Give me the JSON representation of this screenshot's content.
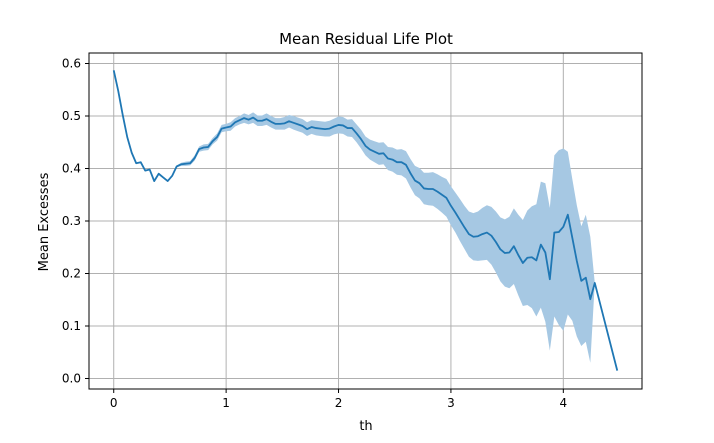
{
  "chart_data": {
    "type": "line",
    "title": "Mean Residual Life Plot",
    "xlabel": "th",
    "ylabel": "Mean Excesses",
    "xlim": [
      -0.22,
      4.7
    ],
    "ylim": [
      -0.02,
      0.62
    ],
    "grid": true,
    "x_ticks": [
      0,
      1,
      2,
      3,
      4
    ],
    "y_ticks": [
      0.0,
      0.1,
      0.2,
      0.3,
      0.4,
      0.5,
      0.6
    ],
    "x_tick_labels": [
      "0",
      "1",
      "2",
      "3",
      "4"
    ],
    "y_tick_labels": [
      "0.0",
      "0.1",
      "0.2",
      "0.3",
      "0.4",
      "0.5",
      "0.6"
    ],
    "colors": {
      "line": "#1f77b4",
      "band": "#a6c8e3",
      "grid": "#b0b0b0"
    },
    "series": [
      {
        "x": [
          0.0,
          0.04,
          0.08,
          0.12,
          0.16,
          0.2,
          0.24,
          0.28,
          0.32,
          0.36,
          0.4,
          0.44,
          0.48,
          0.52,
          0.56,
          0.6,
          0.64,
          0.68,
          0.72,
          0.76,
          0.8,
          0.84,
          0.88,
          0.92,
          0.96,
          1.0,
          1.04,
          1.08,
          1.12,
          1.16,
          1.2,
          1.24,
          1.28,
          1.32,
          1.36,
          1.4,
          1.44,
          1.48,
          1.52,
          1.56,
          1.6,
          1.64,
          1.68,
          1.72,
          1.76,
          1.8,
          1.84,
          1.88,
          1.92,
          1.96,
          2.0,
          2.04,
          2.08,
          2.12,
          2.16,
          2.2,
          2.24,
          2.28,
          2.32,
          2.36,
          2.4,
          2.44,
          2.48,
          2.52,
          2.56,
          2.6,
          2.64,
          2.68,
          2.72,
          2.76,
          2.8,
          2.84,
          2.88,
          2.92,
          2.96,
          3.0,
          3.04,
          3.08,
          3.12,
          3.16,
          3.2,
          3.24,
          3.28,
          3.32,
          3.36,
          3.4,
          3.44,
          3.48,
          3.52,
          3.56,
          3.6,
          3.64,
          3.68,
          3.72,
          3.76,
          3.8,
          3.84,
          3.88,
          3.92,
          3.96,
          4.0,
          4.04,
          4.08,
          4.12,
          4.16,
          4.2,
          4.24,
          4.28,
          4.48
        ],
        "y": [
          0.587,
          0.548,
          0.502,
          0.46,
          0.43,
          0.41,
          0.412,
          0.396,
          0.398,
          0.376,
          0.39,
          0.383,
          0.376,
          0.386,
          0.404,
          0.408,
          0.409,
          0.41,
          0.42,
          0.437,
          0.44,
          0.441,
          0.452,
          0.46,
          0.476,
          0.478,
          0.48,
          0.488,
          0.492,
          0.496,
          0.493,
          0.497,
          0.491,
          0.491,
          0.494,
          0.489,
          0.485,
          0.485,
          0.486,
          0.49,
          0.487,
          0.484,
          0.481,
          0.475,
          0.479,
          0.477,
          0.476,
          0.475,
          0.476,
          0.48,
          0.483,
          0.482,
          0.477,
          0.477,
          0.467,
          0.456,
          0.443,
          0.436,
          0.432,
          0.428,
          0.429,
          0.419,
          0.417,
          0.412,
          0.412,
          0.407,
          0.391,
          0.377,
          0.372,
          0.362,
          0.361,
          0.361,
          0.356,
          0.35,
          0.344,
          0.329,
          0.316,
          0.302,
          0.288,
          0.275,
          0.27,
          0.271,
          0.275,
          0.278,
          0.272,
          0.26,
          0.246,
          0.239,
          0.24,
          0.252,
          0.235,
          0.22,
          0.23,
          0.231,
          0.225,
          0.255,
          0.24,
          0.189,
          0.278,
          0.279,
          0.289,
          0.312,
          0.268,
          0.224,
          0.186,
          0.192,
          0.151,
          0.182,
          0.015
        ],
        "lower": [
          0.587,
          0.548,
          0.502,
          0.46,
          0.43,
          0.41,
          0.412,
          0.396,
          0.398,
          0.376,
          0.39,
          0.383,
          0.376,
          0.386,
          0.402,
          0.405,
          0.405,
          0.406,
          0.415,
          0.432,
          0.434,
          0.435,
          0.446,
          0.453,
          0.469,
          0.471,
          0.472,
          0.48,
          0.484,
          0.487,
          0.484,
          0.487,
          0.481,
          0.481,
          0.483,
          0.478,
          0.474,
          0.474,
          0.474,
          0.478,
          0.474,
          0.471,
          0.468,
          0.462,
          0.466,
          0.463,
          0.462,
          0.461,
          0.461,
          0.465,
          0.467,
          0.466,
          0.461,
          0.46,
          0.45,
          0.438,
          0.425,
          0.417,
          0.412,
          0.407,
          0.408,
          0.397,
          0.394,
          0.388,
          0.387,
          0.381,
          0.364,
          0.349,
          0.343,
          0.332,
          0.33,
          0.329,
          0.323,
          0.316,
          0.308,
          0.292,
          0.278,
          0.262,
          0.247,
          0.232,
          0.225,
          0.224,
          0.225,
          0.226,
          0.217,
          0.202,
          0.185,
          0.175,
          0.172,
          0.18,
          0.158,
          0.138,
          0.14,
          0.134,
          0.118,
          0.135,
          0.108,
          0.053,
          0.118,
          0.102,
          0.091,
          0.122,
          0.11,
          0.08,
          0.062,
          0.07,
          0.03,
          0.182,
          0.015
        ],
        "upper": [
          0.587,
          0.548,
          0.502,
          0.46,
          0.43,
          0.41,
          0.412,
          0.396,
          0.398,
          0.376,
          0.39,
          0.383,
          0.376,
          0.386,
          0.406,
          0.411,
          0.413,
          0.414,
          0.425,
          0.442,
          0.446,
          0.447,
          0.458,
          0.467,
          0.483,
          0.485,
          0.488,
          0.496,
          0.5,
          0.505,
          0.502,
          0.507,
          0.501,
          0.501,
          0.505,
          0.5,
          0.496,
          0.496,
          0.498,
          0.502,
          0.5,
          0.497,
          0.494,
          0.488,
          0.492,
          0.491,
          0.49,
          0.489,
          0.491,
          0.495,
          0.499,
          0.498,
          0.493,
          0.494,
          0.484,
          0.474,
          0.461,
          0.455,
          0.452,
          0.449,
          0.45,
          0.441,
          0.44,
          0.436,
          0.437,
          0.433,
          0.418,
          0.405,
          0.401,
          0.392,
          0.392,
          0.393,
          0.389,
          0.384,
          0.38,
          0.366,
          0.354,
          0.342,
          0.329,
          0.318,
          0.315,
          0.318,
          0.325,
          0.33,
          0.327,
          0.318,
          0.307,
          0.303,
          0.308,
          0.324,
          0.312,
          0.302,
          0.32,
          0.328,
          0.332,
          0.375,
          0.372,
          0.325,
          0.425,
          0.435,
          0.438,
          0.432,
          0.38,
          0.33,
          0.29,
          0.312,
          0.27,
          0.182,
          0.015
        ]
      }
    ]
  }
}
